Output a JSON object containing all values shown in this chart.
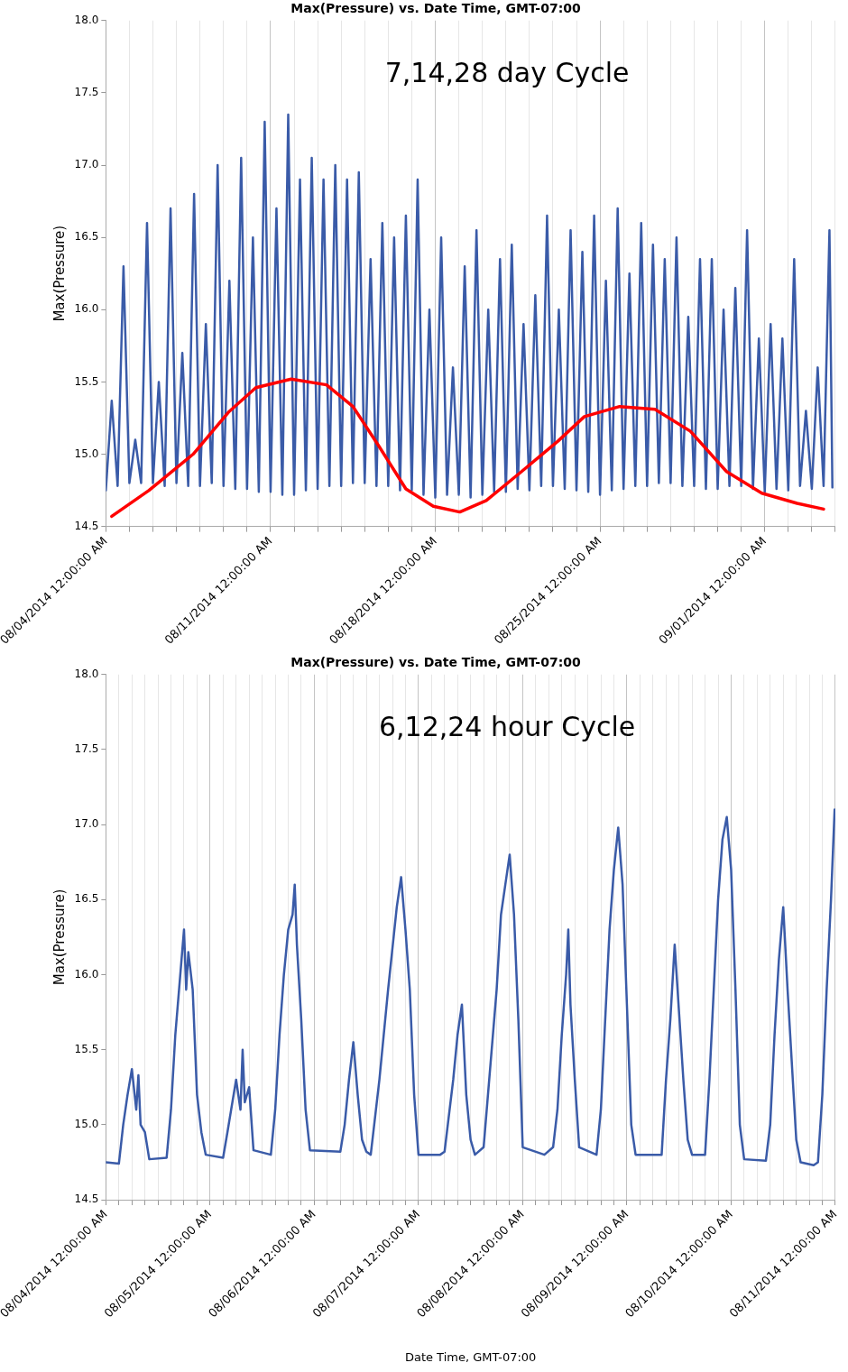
{
  "chart_data": [
    {
      "type": "line",
      "title": "Max(Pressure) vs. Date Time, GMT-07:00",
      "ylabel": "Max(Pressure)",
      "annotations": [
        "7,14,28 day Cycle"
      ],
      "grid": "x",
      "marker": "none",
      "xlim": [
        "2014-08-04",
        "2014-09-04"
      ],
      "ylim": [
        14.5,
        18.0
      ],
      "yticks": [
        {
          "value": 14.5,
          "label": "14.5"
        },
        {
          "value": 15,
          "label": "15.0"
        },
        {
          "value": 15.5,
          "label": "15.5"
        },
        {
          "value": 16,
          "label": "16.0"
        },
        {
          "value": 16.5,
          "label": "16.5"
        },
        {
          "value": 17,
          "label": "17.0"
        },
        {
          "value": 17.5,
          "label": "17.5"
        },
        {
          "value": 18,
          "label": "18.0"
        }
      ],
      "xticks": [
        {
          "value": "2014-08-04",
          "label": "08/04/2014 12:00:00 AM"
        },
        {
          "value": "2014-08-05",
          "label": null
        },
        {
          "value": "2014-08-06",
          "label": null
        },
        {
          "value": "2014-08-07",
          "label": null
        },
        {
          "value": "2014-08-08",
          "label": null
        },
        {
          "value": "2014-08-09",
          "label": null
        },
        {
          "value": "2014-08-10",
          "label": null
        },
        {
          "value": "2014-08-11",
          "label": "08/11/2014 12:00:00 AM"
        },
        {
          "value": "2014-08-12",
          "label": null
        },
        {
          "value": "2014-08-13",
          "label": null
        },
        {
          "value": "2014-08-14",
          "label": null
        },
        {
          "value": "2014-08-15",
          "label": null
        },
        {
          "value": "2014-08-16",
          "label": null
        },
        {
          "value": "2014-08-17",
          "label": null
        },
        {
          "value": "2014-08-18",
          "label": "08/18/2014 12:00:00 AM"
        },
        {
          "value": "2014-08-19",
          "label": null
        },
        {
          "value": "2014-08-20",
          "label": null
        },
        {
          "value": "2014-08-21",
          "label": null
        },
        {
          "value": "2014-08-22",
          "label": null
        },
        {
          "value": "2014-08-23",
          "label": null
        },
        {
          "value": "2014-08-24",
          "label": null
        },
        {
          "value": "2014-08-25",
          "label": "08/25/2014 12:00:00 AM"
        },
        {
          "value": "2014-08-26",
          "label": null
        },
        {
          "value": "2014-08-27",
          "label": null
        },
        {
          "value": "2014-08-28",
          "label": null
        },
        {
          "value": "2014-08-29",
          "label": null
        },
        {
          "value": "2014-08-30",
          "label": null
        },
        {
          "value": "2014-08-31",
          "label": null
        },
        {
          "value": "2014-09-01",
          "label": "09/01/2014 12:00:00 AM"
        },
        {
          "value": "2014-09-02",
          "label": null
        },
        {
          "value": "2014-09-03",
          "label": null
        },
        {
          "value": "2014-09-04",
          "label": null
        }
      ],
      "x": [
        "2014-08-04T00:00",
        "2014-08-04T06:00",
        "2014-08-04T12:00",
        "2014-08-04T18:00",
        "2014-08-05T00:00",
        "2014-08-05T06:00",
        "2014-08-05T12:00",
        "2014-08-05T18:00",
        "2014-08-06T00:00",
        "2014-08-06T06:00",
        "2014-08-06T12:00",
        "2014-08-06T18:00",
        "2014-08-07T00:00",
        "2014-08-07T06:00",
        "2014-08-07T12:00",
        "2014-08-07T18:00",
        "2014-08-08T00:00",
        "2014-08-08T06:00",
        "2014-08-08T12:00",
        "2014-08-08T18:00",
        "2014-08-09T00:00",
        "2014-08-09T06:00",
        "2014-08-09T12:00",
        "2014-08-09T18:00",
        "2014-08-10T00:00",
        "2014-08-10T06:00",
        "2014-08-10T12:00",
        "2014-08-10T18:00",
        "2014-08-11T00:00",
        "2014-08-11T06:00",
        "2014-08-11T12:00",
        "2014-08-11T18:00",
        "2014-08-12T00:00",
        "2014-08-12T06:00",
        "2014-08-12T12:00",
        "2014-08-12T18:00",
        "2014-08-13T00:00",
        "2014-08-13T06:00",
        "2014-08-13T12:00",
        "2014-08-13T18:00",
        "2014-08-14T00:00",
        "2014-08-14T06:00",
        "2014-08-14T12:00",
        "2014-08-14T18:00",
        "2014-08-15T00:00",
        "2014-08-15T06:00",
        "2014-08-15T12:00",
        "2014-08-15T18:00",
        "2014-08-16T00:00",
        "2014-08-16T06:00",
        "2014-08-16T12:00",
        "2014-08-16T18:00",
        "2014-08-17T00:00",
        "2014-08-17T06:00",
        "2014-08-17T12:00",
        "2014-08-17T18:00",
        "2014-08-18T00:00",
        "2014-08-18T06:00",
        "2014-08-18T12:00",
        "2014-08-18T18:00",
        "2014-08-19T00:00",
        "2014-08-19T06:00",
        "2014-08-19T12:00",
        "2014-08-19T18:00",
        "2014-08-20T00:00",
        "2014-08-20T06:00",
        "2014-08-20T12:00",
        "2014-08-20T18:00",
        "2014-08-21T00:00",
        "2014-08-21T06:00",
        "2014-08-21T12:00",
        "2014-08-21T18:00",
        "2014-08-22T00:00",
        "2014-08-22T06:00",
        "2014-08-22T12:00",
        "2014-08-22T18:00",
        "2014-08-23T00:00",
        "2014-08-23T06:00",
        "2014-08-23T12:00",
        "2014-08-23T18:00",
        "2014-08-24T00:00",
        "2014-08-24T06:00",
        "2014-08-24T12:00",
        "2014-08-24T18:00",
        "2014-08-25T00:00",
        "2014-08-25T06:00",
        "2014-08-25T12:00",
        "2014-08-25T18:00",
        "2014-08-26T00:00",
        "2014-08-26T06:00",
        "2014-08-26T12:00",
        "2014-08-26T18:00",
        "2014-08-27T00:00",
        "2014-08-27T06:00",
        "2014-08-27T12:00",
        "2014-08-27T18:00",
        "2014-08-28T00:00",
        "2014-08-28T06:00",
        "2014-08-28T12:00",
        "2014-08-28T18:00",
        "2014-08-29T00:00",
        "2014-08-29T06:00",
        "2014-08-29T12:00",
        "2014-08-29T18:00",
        "2014-08-30T00:00",
        "2014-08-30T06:00",
        "2014-08-30T12:00",
        "2014-08-30T18:00",
        "2014-08-31T00:00",
        "2014-08-31T06:00",
        "2014-08-31T12:00",
        "2014-08-31T18:00",
        "2014-09-01T00:00",
        "2014-09-01T06:00",
        "2014-09-01T12:00",
        "2014-09-01T18:00",
        "2014-09-02T00:00",
        "2014-09-02T06:00",
        "2014-09-02T12:00",
        "2014-09-02T18:00",
        "2014-09-03T00:00",
        "2014-09-03T06:00",
        "2014-09-03T12:00",
        "2014-09-03T18:00",
        "2014-09-03T21:00"
      ],
      "series": [
        {
          "color": "#3a5ba8",
          "values": [
            14.75,
            15.37,
            14.78,
            16.3,
            14.8,
            15.1,
            14.8,
            16.6,
            14.8,
            15.5,
            14.78,
            16.7,
            14.8,
            15.7,
            14.78,
            16.8,
            14.78,
            15.9,
            14.8,
            17.0,
            14.78,
            16.2,
            14.76,
            17.05,
            14.76,
            16.5,
            14.74,
            17.3,
            14.74,
            16.7,
            14.72,
            17.35,
            14.72,
            16.9,
            14.75,
            17.05,
            14.76,
            16.9,
            14.78,
            17.0,
            14.78,
            16.9,
            14.8,
            16.95,
            14.8,
            16.35,
            14.78,
            16.6,
            14.78,
            16.5,
            14.75,
            16.65,
            14.75,
            16.9,
            14.72,
            16.0,
            14.7,
            16.5,
            14.72,
            15.6,
            14.72,
            16.3,
            14.7,
            16.55,
            14.72,
            16.0,
            14.74,
            16.35,
            14.74,
            16.45,
            14.76,
            15.9,
            14.75,
            16.1,
            14.78,
            16.65,
            14.78,
            16.0,
            14.76,
            16.55,
            14.75,
            16.4,
            14.74,
            16.65,
            14.72,
            16.2,
            14.75,
            16.7,
            14.76,
            16.25,
            14.78,
            16.6,
            14.78,
            16.45,
            14.8,
            16.35,
            14.8,
            16.5,
            14.78,
            15.95,
            14.78,
            16.35,
            14.76,
            16.35,
            14.76,
            16.0,
            14.78,
            16.15,
            14.78,
            16.55,
            14.76,
            15.8,
            14.74,
            15.9,
            14.76,
            15.8,
            14.75,
            16.35,
            14.78,
            15.3,
            14.76,
            15.6,
            14.78,
            16.55,
            14.77
          ]
        },
        {
          "type": "line",
          "color": "#ff0000",
          "x": [
            "2014-08-04T06:00",
            "2014-08-05T20:00",
            "2014-08-07T17:00",
            "2014-08-09T05:00",
            "2014-08-10T09:00",
            "2014-08-11T21:00",
            "2014-08-13T09:00",
            "2014-08-14T12:00",
            "2014-08-15T15:00",
            "2014-08-16T18:00",
            "2014-08-17T22:00",
            "2014-08-19T01:00",
            "2014-08-20T04:00",
            "2014-08-21T16:00",
            "2014-08-23T05:00",
            "2014-08-24T08:00",
            "2014-08-25T20:00",
            "2014-08-27T08:00",
            "2014-08-28T20:00",
            "2014-08-30T09:00",
            "2014-08-31T21:00",
            "2014-09-02T09:00",
            "2014-09-03T12:00"
          ],
          "values": [
            14.57,
            14.75,
            15.0,
            15.29,
            15.46,
            15.52,
            15.48,
            15.33,
            15.05,
            14.76,
            14.64,
            14.6,
            14.68,
            14.88,
            15.09,
            15.26,
            15.33,
            15.31,
            15.16,
            14.88,
            14.73,
            14.66,
            14.62
          ]
        }
      ]
    },
    {
      "type": "line",
      "title": "Max(Pressure) vs. Date Time, GMT-07:00",
      "xlabel": "Date Time, GMT-07:00",
      "ylabel": "Max(Pressure)",
      "annotations": [
        "6,12,24 hour Cycle"
      ],
      "grid": "x",
      "marker": "none",
      "xlim": [
        "2014-08-04",
        "2014-08-11"
      ],
      "ylim": [
        14.5,
        18.0
      ],
      "yticks": [
        {
          "value": 14.5,
          "label": "14.5"
        },
        {
          "value": 15,
          "label": "15.0"
        },
        {
          "value": 15.5,
          "label": "15.5"
        },
        {
          "value": 16,
          "label": "16.0"
        },
        {
          "value": 16.5,
          "label": "16.5"
        },
        {
          "value": 17,
          "label": "17.0"
        },
        {
          "value": 17.5,
          "label": "17.5"
        },
        {
          "value": 18,
          "label": "18.0"
        }
      ],
      "xticks": [
        {
          "value": "2014-08-04T00:00",
          "label": "08/04/2014 12:00:00 AM"
        },
        {
          "value": "2014-08-04T03:00",
          "label": null
        },
        {
          "value": "2014-08-04T06:00",
          "label": null
        },
        {
          "value": "2014-08-04T09:00",
          "label": null
        },
        {
          "value": "2014-08-04T12:00",
          "label": null
        },
        {
          "value": "2014-08-04T15:00",
          "label": null
        },
        {
          "value": "2014-08-04T18:00",
          "label": null
        },
        {
          "value": "2014-08-04T21:00",
          "label": null
        },
        {
          "value": "2014-08-05T00:00",
          "label": "08/05/2014 12:00:00 AM"
        },
        {
          "value": "2014-08-05T03:00",
          "label": null
        },
        {
          "value": "2014-08-05T06:00",
          "label": null
        },
        {
          "value": "2014-08-05T09:00",
          "label": null
        },
        {
          "value": "2014-08-05T12:00",
          "label": null
        },
        {
          "value": "2014-08-05T15:00",
          "label": null
        },
        {
          "value": "2014-08-05T18:00",
          "label": null
        },
        {
          "value": "2014-08-05T21:00",
          "label": null
        },
        {
          "value": "2014-08-06T00:00",
          "label": "08/06/2014 12:00:00 AM"
        },
        {
          "value": "2014-08-06T03:00",
          "label": null
        },
        {
          "value": "2014-08-06T06:00",
          "label": null
        },
        {
          "value": "2014-08-06T09:00",
          "label": null
        },
        {
          "value": "2014-08-06T12:00",
          "label": null
        },
        {
          "value": "2014-08-06T15:00",
          "label": null
        },
        {
          "value": "2014-08-06T18:00",
          "label": null
        },
        {
          "value": "2014-08-06T21:00",
          "label": null
        },
        {
          "value": "2014-08-07T00:00",
          "label": "08/07/2014 12:00:00 AM"
        },
        {
          "value": "2014-08-07T03:00",
          "label": null
        },
        {
          "value": "2014-08-07T06:00",
          "label": null
        },
        {
          "value": "2014-08-07T09:00",
          "label": null
        },
        {
          "value": "2014-08-07T12:00",
          "label": null
        },
        {
          "value": "2014-08-07T15:00",
          "label": null
        },
        {
          "value": "2014-08-07T18:00",
          "label": null
        },
        {
          "value": "2014-08-07T21:00",
          "label": null
        },
        {
          "value": "2014-08-08T00:00",
          "label": "08/08/2014 12:00:00 AM"
        },
        {
          "value": "2014-08-08T03:00",
          "label": null
        },
        {
          "value": "2014-08-08T06:00",
          "label": null
        },
        {
          "value": "2014-08-08T09:00",
          "label": null
        },
        {
          "value": "2014-08-08T12:00",
          "label": null
        },
        {
          "value": "2014-08-08T15:00",
          "label": null
        },
        {
          "value": "2014-08-08T18:00",
          "label": null
        },
        {
          "value": "2014-08-08T21:00",
          "label": null
        },
        {
          "value": "2014-08-09T00:00",
          "label": "08/09/2014 12:00:00 AM"
        },
        {
          "value": "2014-08-09T03:00",
          "label": null
        },
        {
          "value": "2014-08-09T06:00",
          "label": null
        },
        {
          "value": "2014-08-09T09:00",
          "label": null
        },
        {
          "value": "2014-08-09T12:00",
          "label": null
        },
        {
          "value": "2014-08-09T15:00",
          "label": null
        },
        {
          "value": "2014-08-09T18:00",
          "label": null
        },
        {
          "value": "2014-08-09T21:00",
          "label": null
        },
        {
          "value": "2014-08-10T00:00",
          "label": "08/10/2014 12:00:00 AM"
        },
        {
          "value": "2014-08-10T03:00",
          "label": null
        },
        {
          "value": "2014-08-10T06:00",
          "label": null
        },
        {
          "value": "2014-08-10T09:00",
          "label": null
        },
        {
          "value": "2014-08-10T12:00",
          "label": null
        },
        {
          "value": "2014-08-10T15:00",
          "label": null
        },
        {
          "value": "2014-08-10T18:00",
          "label": null
        },
        {
          "value": "2014-08-10T21:00",
          "label": null
        },
        {
          "value": "2014-08-11T00:00",
          "label": "08/11/2014 12:00:00 AM"
        }
      ],
      "x": [
        "2014-08-04T00:00",
        "2014-08-04T03:00",
        "2014-08-04T04:00",
        "2014-08-04T05:00",
        "2014-08-04T06:00",
        "2014-08-04T07:00",
        "2014-08-04T07:30",
        "2014-08-04T08:00",
        "2014-08-04T09:00",
        "2014-08-04T10:00",
        "2014-08-04T14:00",
        "2014-08-04T15:00",
        "2014-08-04T16:00",
        "2014-08-04T17:00",
        "2014-08-04T18:00",
        "2014-08-04T18:30",
        "2014-08-04T19:00",
        "2014-08-04T20:00",
        "2014-08-04T21:00",
        "2014-08-04T22:00",
        "2014-08-04T23:00",
        "2014-08-05T03:00",
        "2014-08-05T04:00",
        "2014-08-05T06:00",
        "2014-08-05T07:00",
        "2014-08-05T07:30",
        "2014-08-05T08:00",
        "2014-08-05T09:00",
        "2014-08-05T10:00",
        "2014-08-05T14:00",
        "2014-08-05T15:00",
        "2014-08-05T16:00",
        "2014-08-05T17:00",
        "2014-08-05T18:00",
        "2014-08-05T19:00",
        "2014-08-05T19:30",
        "2014-08-05T20:00",
        "2014-08-05T21:00",
        "2014-08-05T22:00",
        "2014-08-05T23:00",
        "2014-08-06T06:00",
        "2014-08-06T07:00",
        "2014-08-06T08:00",
        "2014-08-06T09:00",
        "2014-08-06T10:00",
        "2014-08-06T11:00",
        "2014-08-06T12:00",
        "2014-08-06T13:00",
        "2014-08-06T15:00",
        "2014-08-06T17:00",
        "2014-08-06T19:00",
        "2014-08-06T20:00",
        "2014-08-06T21:00",
        "2014-08-06T22:00",
        "2014-08-06T23:00",
        "2014-08-07T00:00",
        "2014-08-07T05:00",
        "2014-08-07T06:00",
        "2014-08-07T08:00",
        "2014-08-07T09:00",
        "2014-08-07T10:00",
        "2014-08-07T10:30",
        "2014-08-07T11:00",
        "2014-08-07T12:00",
        "2014-08-07T13:00",
        "2014-08-07T15:00",
        "2014-08-07T16:00",
        "2014-08-07T18:00",
        "2014-08-07T19:00",
        "2014-08-07T20:00",
        "2014-08-07T21:00",
        "2014-08-07T22:00",
        "2014-08-07T23:00",
        "2014-08-08T00:00",
        "2014-08-08T05:00",
        "2014-08-08T07:00",
        "2014-08-08T08:00",
        "2014-08-08T09:00",
        "2014-08-08T10:00",
        "2014-08-08T10:30",
        "2014-08-08T11:00",
        "2014-08-08T12:00",
        "2014-08-08T13:00",
        "2014-08-08T17:00",
        "2014-08-08T18:00",
        "2014-08-08T19:00",
        "2014-08-08T20:00",
        "2014-08-08T21:00",
        "2014-08-08T22:00",
        "2014-08-08T23:00",
        "2014-08-09T00:00",
        "2014-08-09T01:00",
        "2014-08-09T02:00",
        "2014-08-09T08:00",
        "2014-08-09T09:00",
        "2014-08-09T10:00",
        "2014-08-09T11:00",
        "2014-08-09T12:00",
        "2014-08-09T13:00",
        "2014-08-09T14:00",
        "2014-08-09T15:00",
        "2014-08-09T18:00",
        "2014-08-09T19:00",
        "2014-08-09T20:00",
        "2014-08-09T21:00",
        "2014-08-09T22:00",
        "2014-08-09T23:00",
        "2014-08-10T00:00",
        "2014-08-10T01:00",
        "2014-08-10T02:00",
        "2014-08-10T03:00",
        "2014-08-10T08:00",
        "2014-08-10T09:00",
        "2014-08-10T10:00",
        "2014-08-10T11:00",
        "2014-08-10T12:00",
        "2014-08-10T13:00",
        "2014-08-10T14:00",
        "2014-08-10T15:00",
        "2014-08-10T16:00",
        "2014-08-10T19:00",
        "2014-08-10T20:00",
        "2014-08-10T21:00",
        "2014-08-10T22:00",
        "2014-08-10T23:00",
        "2014-08-10T23:50"
      ],
      "series": [
        {
          "color": "#3a5ba8",
          "values": [
            14.75,
            14.74,
            15.0,
            15.2,
            15.37,
            15.1,
            15.33,
            15.0,
            14.95,
            14.77,
            14.78,
            15.1,
            15.6,
            15.95,
            16.3,
            15.9,
            16.15,
            15.9,
            15.2,
            14.95,
            14.8,
            14.78,
            14.95,
            15.3,
            15.1,
            15.5,
            15.15,
            15.25,
            14.83,
            14.8,
            15.1,
            15.6,
            16.0,
            16.3,
            16.4,
            16.6,
            16.2,
            15.7,
            15.1,
            14.83,
            14.82,
            15.0,
            15.3,
            15.55,
            15.2,
            14.9,
            14.82,
            14.8,
            15.3,
            15.9,
            16.45,
            16.65,
            16.3,
            15.9,
            15.2,
            14.8,
            14.8,
            14.82,
            15.3,
            15.6,
            15.8,
            15.5,
            15.2,
            14.9,
            14.8,
            14.85,
            15.2,
            15.9,
            16.4,
            16.6,
            16.8,
            16.4,
            15.7,
            14.85,
            14.8,
            14.85,
            15.1,
            15.6,
            16.0,
            16.3,
            15.8,
            15.3,
            14.85,
            14.8,
            15.1,
            15.7,
            16.3,
            16.7,
            16.98,
            16.6,
            15.8,
            15.0,
            14.8,
            14.8,
            15.3,
            15.7,
            16.2,
            15.75,
            15.3,
            14.9,
            14.8,
            14.8,
            15.3,
            15.9,
            16.5,
            16.9,
            17.05,
            16.7,
            15.9,
            15.0,
            14.77,
            14.76,
            15.0,
            15.6,
            16.1,
            16.45,
            15.9,
            15.4,
            14.9,
            14.75,
            14.73,
            14.75,
            15.2,
            15.9,
            16.5,
            17.1
          ]
        }
      ]
    }
  ]
}
